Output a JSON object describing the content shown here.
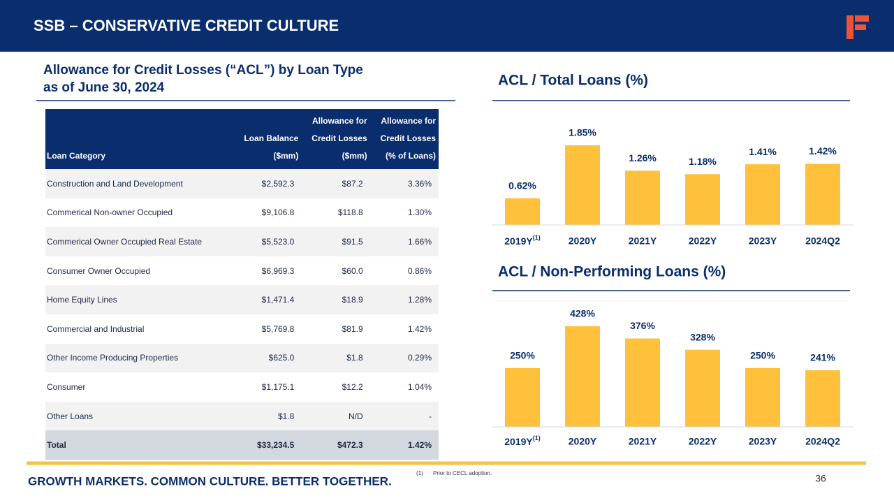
{
  "header": {
    "title": "SSB – CONSERVATIVE CREDIT CULTURE"
  },
  "table": {
    "title_lines": [
      "Allowance for Credit Losses (“ACL”)  by Loan Type",
      "as of June 30, 2024"
    ],
    "header": [
      [
        "Loan Category"
      ],
      [
        "Loan Balance",
        "($mm)"
      ],
      [
        "Allowance for",
        "Credit Losses",
        "($mm)"
      ],
      [
        "Allowance for",
        "Credit Losses",
        "(% of Loans)"
      ]
    ],
    "rows": [
      [
        "Construction and Land Development",
        "$2,592.3",
        "$87.2",
        "3.36%"
      ],
      [
        "Commerical Non-owner Occupied",
        "$9,106.8",
        "$118.8",
        "1.30%"
      ],
      [
        "Commerical Owner Occupied Real Estate",
        "$5,523.0",
        "$91.5",
        "1.66%"
      ],
      [
        "Consumer Owner Occupied",
        "$6,969.3",
        "$60.0",
        "0.86%"
      ],
      [
        "Home Equity Lines",
        "$1,471.4",
        "$18.9",
        "1.28%"
      ],
      [
        "Commercial and Industrial",
        "$5,769.8",
        "$81.9",
        "1.42%"
      ],
      [
        "Other Income Producing Properties",
        "$625.0",
        "$1.8",
        "0.29%"
      ],
      [
        "Consumer",
        "$1,175.1",
        "$12.2",
        "1.04%"
      ],
      [
        "Other Loans",
        "$1.8",
        "N/D",
        "-"
      ]
    ],
    "total": [
      "Total",
      "$33,234.5",
      "$472.3",
      "1.42%"
    ]
  },
  "chart_data": [
    {
      "type": "bar",
      "title": "ACL / Total Loans (%)",
      "categories": [
        "2019Y(1)",
        "2020Y",
        "2021Y",
        "2022Y",
        "2023Y",
        "2024Q2"
      ],
      "values": [
        0.62,
        1.85,
        1.26,
        1.18,
        1.41,
        1.42
      ],
      "value_labels": [
        "0.62%",
        "1.85%",
        "1.26%",
        "1.18%",
        "1.41%",
        "1.42%"
      ],
      "color": "#ffc13b"
    },
    {
      "type": "bar",
      "title": "ACL / Non-Performing Loans (%)",
      "categories": [
        "2019Y(1)",
        "2020Y",
        "2021Y",
        "2022Y",
        "2023Y",
        "2024Q2"
      ],
      "values": [
        250,
        428,
        376,
        328,
        250,
        241
      ],
      "value_labels": [
        "250%",
        "428%",
        "376%",
        "328%",
        "250%",
        "241%"
      ],
      "color": "#ffc13b"
    }
  ],
  "footer": {
    "tagline": "GROWTH MARKETS. COMMON  CULTURE. BETTER TOGETHER.",
    "footnote_marker": "(1)",
    "footnote": "Prior to CECL adoption.",
    "page_number": "36"
  }
}
